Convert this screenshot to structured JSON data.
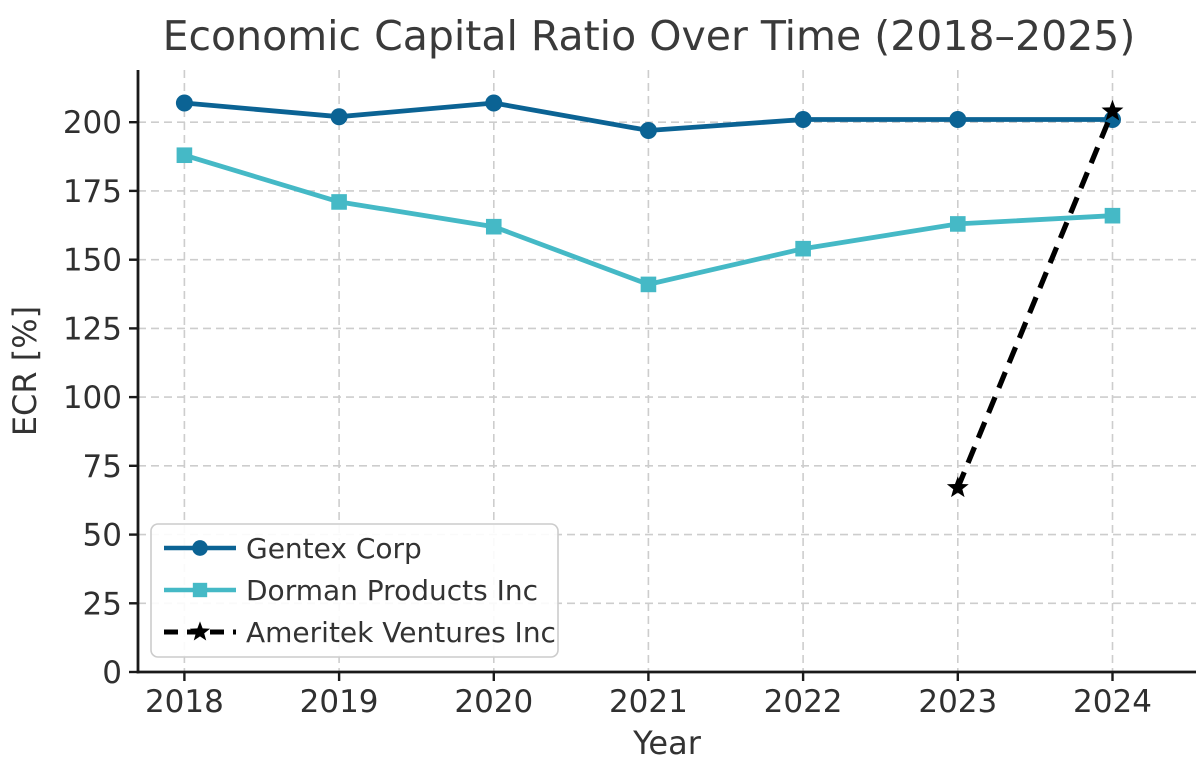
{
  "chart_data": {
    "type": "line",
    "title": "Economic Capital Ratio Over Time (2018–2025)",
    "xlabel": "Year",
    "ylabel": "ECR [%]",
    "x": [
      2018,
      2019,
      2020,
      2021,
      2022,
      2023,
      2024
    ],
    "xticks": [
      2018,
      2019,
      2020,
      2021,
      2022,
      2023,
      2024
    ],
    "yticks": [
      0,
      25,
      50,
      75,
      100,
      125,
      150,
      175,
      200
    ],
    "xlim": [
      2017.7,
      2024.54
    ],
    "ylim": [
      0,
      219
    ],
    "grid": true,
    "legend_position": "lower-left",
    "series": [
      {
        "name": "Gentex Corp",
        "color": "#0b6394",
        "marker": "circle",
        "linestyle": "solid",
        "values": [
          207,
          202,
          207,
          197,
          201,
          201,
          201
        ]
      },
      {
        "name": "Dorman Products Inc",
        "color": "#45b9c6",
        "marker": "square",
        "linestyle": "solid",
        "values": [
          188,
          171,
          162,
          141,
          154,
          163,
          166
        ]
      },
      {
        "name": "Ameritek Ventures Inc",
        "color": "#000000",
        "marker": "star",
        "linestyle": "dashed",
        "values": [
          null,
          null,
          null,
          null,
          null,
          67,
          204
        ]
      }
    ],
    "colors": {
      "grid": "#cdcdcd",
      "spine": "#1a1a1a",
      "tick_label": "#303030",
      "title": "#3a3a3a",
      "axis_label": "#333333",
      "legend_text": "#333333",
      "legend_border": "#cccccc",
      "background": "#ffffff"
    }
  }
}
